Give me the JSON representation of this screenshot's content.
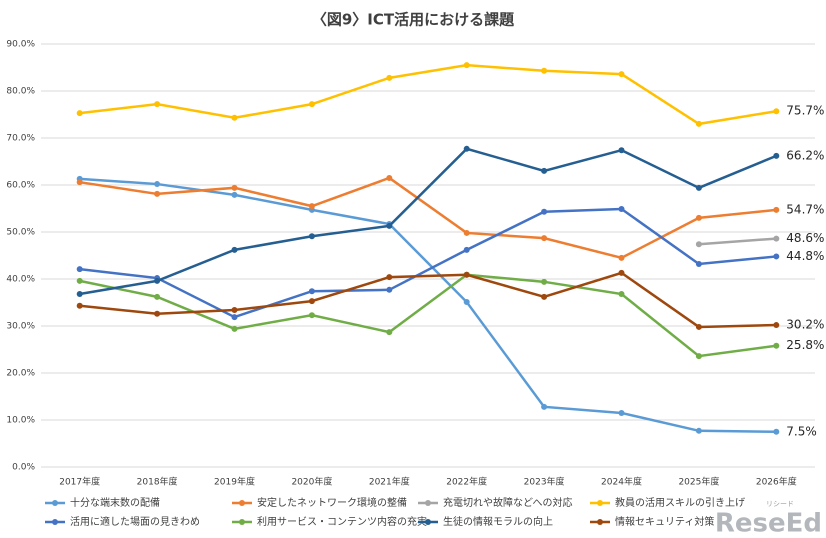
{
  "chart_data": {
    "type": "line",
    "title": "〈図9〉ICT活用における課題",
    "categories": [
      "2017年度",
      "2018年度",
      "2019年度",
      "2020年度",
      "2021年度",
      "2022年度",
      "2023年度",
      "2024年度",
      "2025年度",
      "2026年度"
    ],
    "ylim": [
      0,
      90
    ],
    "yticks": [
      {
        "value": 0,
        "label": "0.0%"
      },
      {
        "value": 10,
        "label": "10.0%"
      },
      {
        "value": 20,
        "label": "20.0%"
      },
      {
        "value": 30,
        "label": "30.0%"
      },
      {
        "value": 40,
        "label": "40.0%"
      },
      {
        "value": 50,
        "label": "50.0%"
      },
      {
        "value": 60,
        "label": "60.0%"
      },
      {
        "value": 70,
        "label": "70.0%"
      },
      {
        "value": 80,
        "label": "80.0%"
      },
      {
        "value": 90,
        "label": "90.0%"
      }
    ],
    "grid": true,
    "series": [
      {
        "name": "十分な端末数の配備",
        "color": "#5b9bd5",
        "values": [
          61.3,
          60.2,
          57.9,
          54.7,
          51.7,
          35.1,
          12.8,
          11.5,
          7.7,
          7.5
        ],
        "value_labels": [
          null,
          null,
          null,
          null,
          null,
          null,
          null,
          null,
          null,
          "7.5%"
        ]
      },
      {
        "name": "安定したネットワーク環境の整備",
        "color": "#ed7d31",
        "values": [
          60.6,
          58.1,
          59.4,
          55.5,
          61.5,
          49.8,
          48.7,
          44.5,
          53.0,
          54.7
        ],
        "value_labels": [
          null,
          null,
          null,
          null,
          null,
          null,
          null,
          null,
          null,
          "54.7%"
        ]
      },
      {
        "name": "充電切れや故障などへの対応",
        "color": "#a5a5a5",
        "values": [
          null,
          null,
          null,
          null,
          null,
          null,
          null,
          null,
          47.4,
          48.6
        ],
        "value_labels": [
          null,
          null,
          null,
          null,
          null,
          null,
          null,
          null,
          null,
          "48.6%"
        ]
      },
      {
        "name": "教員の活用スキルの引き上げ",
        "color": "#ffc000",
        "values": [
          75.3,
          77.2,
          74.3,
          77.2,
          82.8,
          85.5,
          84.3,
          83.6,
          73.0,
          75.7
        ],
        "value_labels": [
          null,
          null,
          null,
          null,
          null,
          null,
          null,
          null,
          null,
          "75.7%"
        ]
      },
      {
        "name": "活用に適した場面の見きわめ",
        "color": "#4472c4",
        "values": [
          42.1,
          40.2,
          31.9,
          37.4,
          37.7,
          46.2,
          54.3,
          54.9,
          43.2,
          44.8
        ],
        "value_labels": [
          null,
          null,
          null,
          null,
          null,
          null,
          null,
          null,
          null,
          "44.8%"
        ]
      },
      {
        "name": "利用サービス・コンテンツ内容の充実",
        "color": "#70ad47",
        "values": [
          39.6,
          36.2,
          29.4,
          32.3,
          28.7,
          40.9,
          39.4,
          36.8,
          23.6,
          25.8
        ],
        "value_labels": [
          null,
          null,
          null,
          null,
          null,
          null,
          null,
          null,
          null,
          "25.8%"
        ]
      },
      {
        "name": "生徒の情報モラルの向上",
        "color": "#255e91",
        "values": [
          36.8,
          39.6,
          46.2,
          49.1,
          51.3,
          67.7,
          63.0,
          67.4,
          59.4,
          66.2
        ],
        "value_labels": [
          null,
          null,
          null,
          null,
          null,
          null,
          null,
          null,
          null,
          "66.2%"
        ]
      },
      {
        "name": "情報セキュリティ対策",
        "color": "#9e480e",
        "values": [
          34.3,
          32.6,
          33.4,
          35.3,
          40.4,
          40.9,
          36.2,
          41.3,
          29.8,
          30.2
        ],
        "value_labels": [
          null,
          null,
          null,
          null,
          null,
          null,
          null,
          null,
          null,
          "30.2%"
        ]
      }
    ]
  },
  "watermark": "ReseEd",
  "watermark_sub": "リシード"
}
